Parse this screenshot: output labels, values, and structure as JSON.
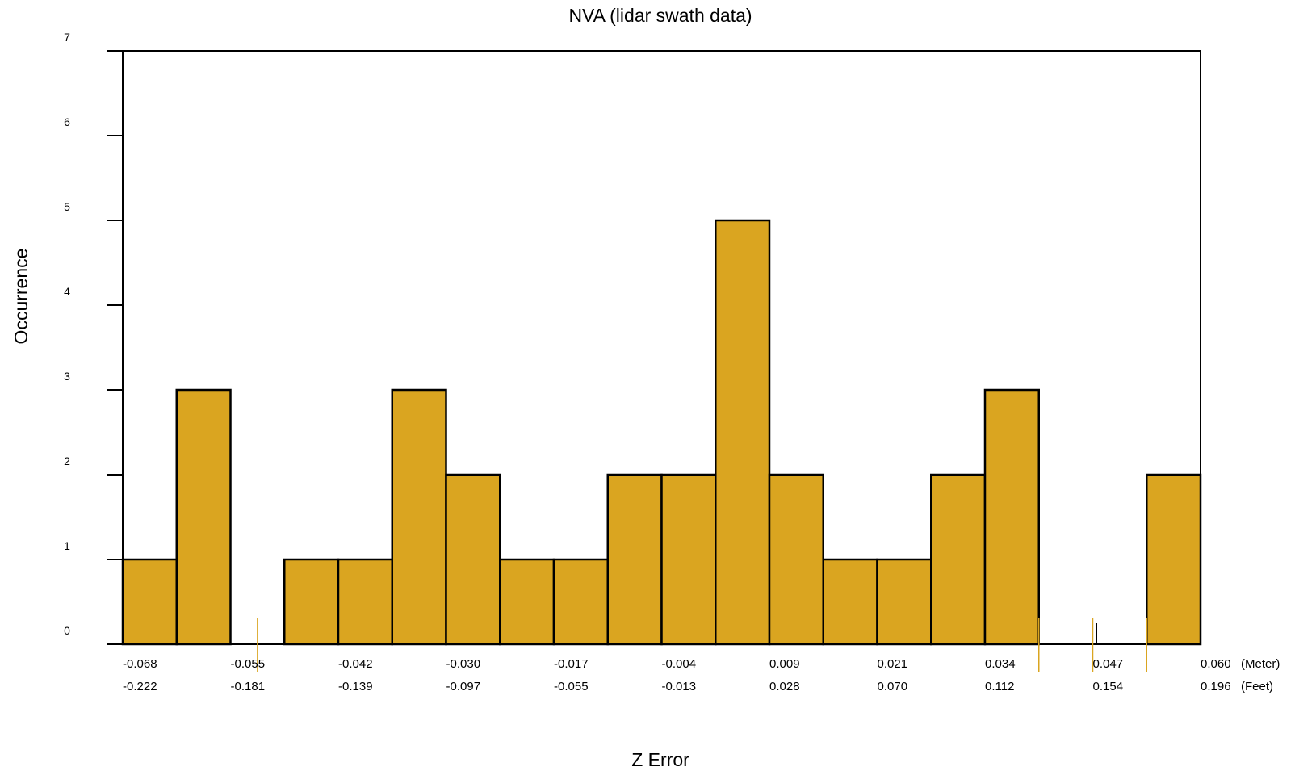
{
  "chart_data": {
    "type": "bar",
    "title": "NVA (lidar swath data)",
    "xlabel": "Z Error",
    "ylabel": "Occurrence",
    "ylim": [
      0,
      7
    ],
    "yticks": [
      "0",
      "1",
      "2",
      "3",
      "4",
      "5",
      "6",
      "7"
    ],
    "xlim": [
      -0.068,
      0.06
    ],
    "bin_width": 0.0064,
    "bin_starts": [
      -0.068,
      -0.0616,
      -0.0552,
      -0.0488,
      -0.0424,
      -0.036,
      -0.0296,
      -0.0232,
      -0.0168,
      -0.0104,
      -0.004,
      0.0024,
      0.0088,
      0.0152,
      0.0216,
      0.028,
      0.0344,
      0.0408,
      0.0472,
      0.0536
    ],
    "values": [
      1,
      3,
      0,
      1,
      1,
      3,
      2,
      1,
      1,
      2,
      2,
      5,
      2,
      1,
      1,
      2,
      3,
      0,
      0,
      2
    ],
    "x_ticks_meter": [
      "-0.068",
      "-0.055",
      "-0.042",
      "-0.030",
      "-0.017",
      "-0.004",
      "0.009",
      "0.021",
      "0.034",
      "0.047",
      "0.060"
    ],
    "x_ticks_feet": [
      "-0.222",
      "-0.181",
      "-0.139",
      "-0.097",
      "-0.055",
      "-0.013",
      "0.028",
      "0.070",
      "0.112",
      "0.154",
      "0.196"
    ],
    "unit_meter": "(Meter)",
    "unit_feet": "(Feet)",
    "reference_lines": [
      -0.052,
      0.0408,
      0.0472,
      0.0536
    ],
    "colors": {
      "bar": "#DAA520",
      "reference_line": "#DAA520",
      "axis": "#000000"
    },
    "grid": false,
    "legend": "none"
  }
}
